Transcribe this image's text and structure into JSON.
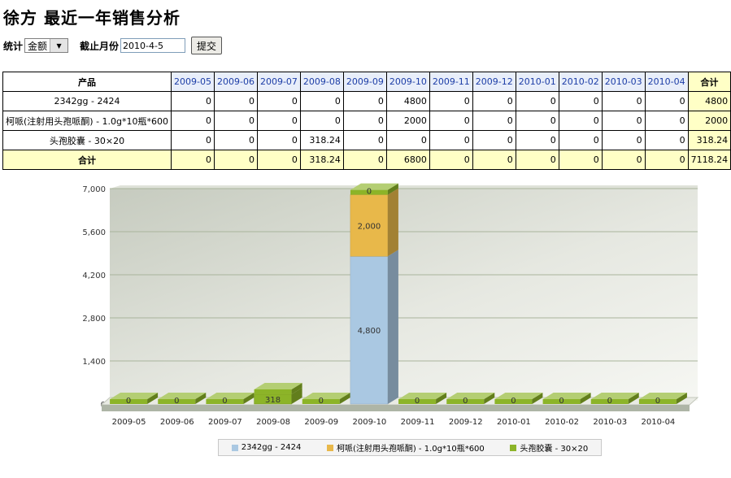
{
  "header": {
    "title": "徐方 最近一年销售分析"
  },
  "controls": {
    "stat_label": "统计",
    "stat_value": "金额",
    "month_label": "截止月份",
    "month_value": "2010-4-5",
    "submit_label": "提交"
  },
  "table": {
    "product_header": "产品",
    "total_header": "合计",
    "months": [
      "2009-05",
      "2009-06",
      "2009-07",
      "2009-08",
      "2009-09",
      "2009-10",
      "2009-11",
      "2009-12",
      "2010-01",
      "2010-02",
      "2010-03",
      "2010-04"
    ],
    "rows": [
      {
        "name": "2342gg - 2424",
        "values": [
          "0",
          "0",
          "0",
          "0",
          "0",
          "4800",
          "0",
          "0",
          "0",
          "0",
          "0",
          "0"
        ],
        "total": "4800"
      },
      {
        "name": "柯哌(注射用头孢哌酮) - 1.0g*10瓶*600",
        "values": [
          "0",
          "0",
          "0",
          "0",
          "0",
          "2000",
          "0",
          "0",
          "0",
          "0",
          "0",
          "0"
        ],
        "total": "2000"
      },
      {
        "name": "头孢胶囊 - 30×20",
        "values": [
          "0",
          "0",
          "0",
          "318.24",
          "0",
          "0",
          "0",
          "0",
          "0",
          "0",
          "0",
          "0"
        ],
        "total": "318.24"
      }
    ],
    "sum_row": {
      "name": "合计",
      "values": [
        "0",
        "0",
        "0",
        "318.24",
        "0",
        "6800",
        "0",
        "0",
        "0",
        "0",
        "0",
        "0"
      ],
      "total": "7118.24"
    }
  },
  "chart_data": {
    "type": "bar",
    "stacked": true,
    "categories": [
      "2009-05",
      "2009-06",
      "2009-07",
      "2009-08",
      "2009-09",
      "2009-10",
      "2009-11",
      "2009-12",
      "2010-01",
      "2010-02",
      "2010-03",
      "2010-04"
    ],
    "series": [
      {
        "name": "2342gg - 2424",
        "color": "#aac8e2",
        "values": [
          0,
          0,
          0,
          0,
          0,
          4800,
          0,
          0,
          0,
          0,
          0,
          0
        ],
        "labels": [
          "",
          "",
          "",
          "",
          "",
          "4,800",
          "",
          "",
          "",
          "",
          "",
          ""
        ]
      },
      {
        "name": "柯哌(注射用头孢哌酮) - 1.0g*10瓶*600",
        "color": "#e8b84a",
        "values": [
          0,
          0,
          0,
          0,
          0,
          2000,
          0,
          0,
          0,
          0,
          0,
          0
        ],
        "labels": [
          "",
          "",
          "",
          "",
          "",
          "2,000",
          "",
          "",
          "",
          "",
          "",
          ""
        ]
      },
      {
        "name": "头孢胶囊 - 30×20",
        "color": "#8cb428",
        "values": [
          0,
          0,
          0,
          318.24,
          0,
          0,
          0,
          0,
          0,
          0,
          0,
          0
        ],
        "labels": [
          "0",
          "0",
          "0",
          "318",
          "0",
          "0",
          "0",
          "0",
          "0",
          "0",
          "0",
          "0"
        ]
      }
    ],
    "yticks": [
      0,
      1400,
      2800,
      4200,
      5600,
      7000
    ],
    "ytick_labels": [
      "0",
      "1,400",
      "2,800",
      "4,200",
      "5,600",
      "7,000"
    ],
    "ylim": [
      0,
      7000
    ],
    "grid": true,
    "legend_position": "bottom"
  }
}
